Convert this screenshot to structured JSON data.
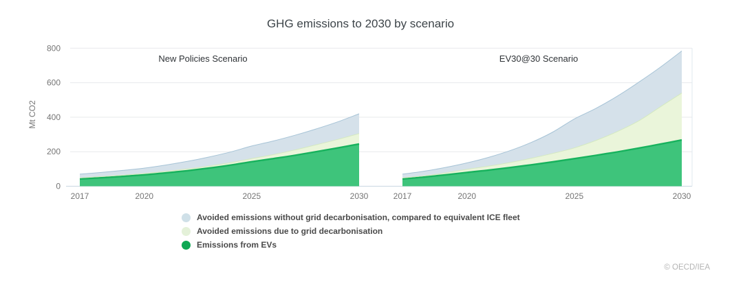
{
  "copyright": "© OECD/IEA",
  "colors": {
    "background": "#ffffff",
    "grid_line": "#e7e9eb",
    "axis_line": "#c9d7e2",
    "plot_right_border": "#dfe8ef",
    "axis_tick_text": "#757575",
    "title_text": "#3d4449",
    "legend_text": "#4a4a4a"
  },
  "chart_data": {
    "type": "area",
    "stacked": true,
    "grid": true,
    "title": "GHG emissions to 2030 by scenario",
    "ylabel": "Mt CO2",
    "xlabel": "",
    "ylim": [
      0,
      800
    ],
    "y_ticks": [
      0,
      200,
      400,
      600,
      800
    ],
    "x": [
      2017,
      2018,
      2019,
      2020,
      2021,
      2022,
      2023,
      2024,
      2025,
      2026,
      2027,
      2028,
      2029,
      2030
    ],
    "x_ticks": [
      2017,
      2020,
      2025,
      2030
    ],
    "legend_position": "bottom-left",
    "legend": [
      {
        "label": "Avoided emissions without grid decarbonisation, compared to equivalent ICE fleet",
        "color": "#cfe0e8"
      },
      {
        "label": "Avoided emissions due to grid decarbonisation",
        "color": "#e4f1d9"
      },
      {
        "label": "Emissions from EVs",
        "color": "#0fa854"
      }
    ],
    "panels": [
      {
        "name": "New Policies Scenario",
        "series": [
          {
            "name": "Emissions from EVs",
            "fill": "#3ec47b",
            "stroke": "#17b25d",
            "stroke_width": 2.4,
            "values": [
              42,
              49,
              57,
              66,
              77,
              90,
              105,
              122,
              142,
              160,
              179,
              200,
              222,
              245
            ]
          },
          {
            "name": "Avoided emissions due to grid decarbonisation",
            "fill": "#eaf5da",
            "stroke": "#d4e9c0",
            "stroke_width": 1,
            "values": [
              6,
              7,
              7,
              8,
              9,
              10,
              12,
              14,
              18,
              23,
              31,
              40,
              49,
              60
            ]
          },
          {
            "name": "Avoided emissions without grid decarbonisation, compared to equivalent ICE fleet",
            "fill": "#d5e1ea",
            "stroke": "#a6c3d6",
            "stroke_width": 1,
            "values": [
              22,
              24,
              28,
              31,
              37,
              44,
              52,
              62,
              73,
              79,
              85,
              92,
              102,
              115
            ]
          }
        ]
      },
      {
        "name": "EV30@30 Scenario",
        "series": [
          {
            "name": "Emissions from EVs",
            "fill": "#3ec47b",
            "stroke": "#17b25d",
            "stroke_width": 2.4,
            "values": [
              42,
              53,
              66,
              80,
              93,
              108,
              124,
              141,
              160,
              179,
              199,
              221,
              244,
              268
            ]
          },
          {
            "name": "Avoided emissions due to grid decarbonisation",
            "fill": "#eaf5da",
            "stroke": "#d4e9c0",
            "stroke_width": 1,
            "values": [
              6,
              7,
              11,
              18,
              23,
              29,
              38,
              49,
              62,
              86,
              118,
              158,
              216,
              272
            ]
          },
          {
            "name": "Avoided emissions without grid decarbonisation, compared to equivalent ICE fleet",
            "fill": "#d5e1ea",
            "stroke": "#a6c3d6",
            "stroke_width": 1,
            "values": [
              22,
              27,
              32,
              37,
              51,
              69,
              92,
              124,
              168,
              186,
              205,
              224,
              230,
              244
            ]
          }
        ]
      }
    ]
  }
}
